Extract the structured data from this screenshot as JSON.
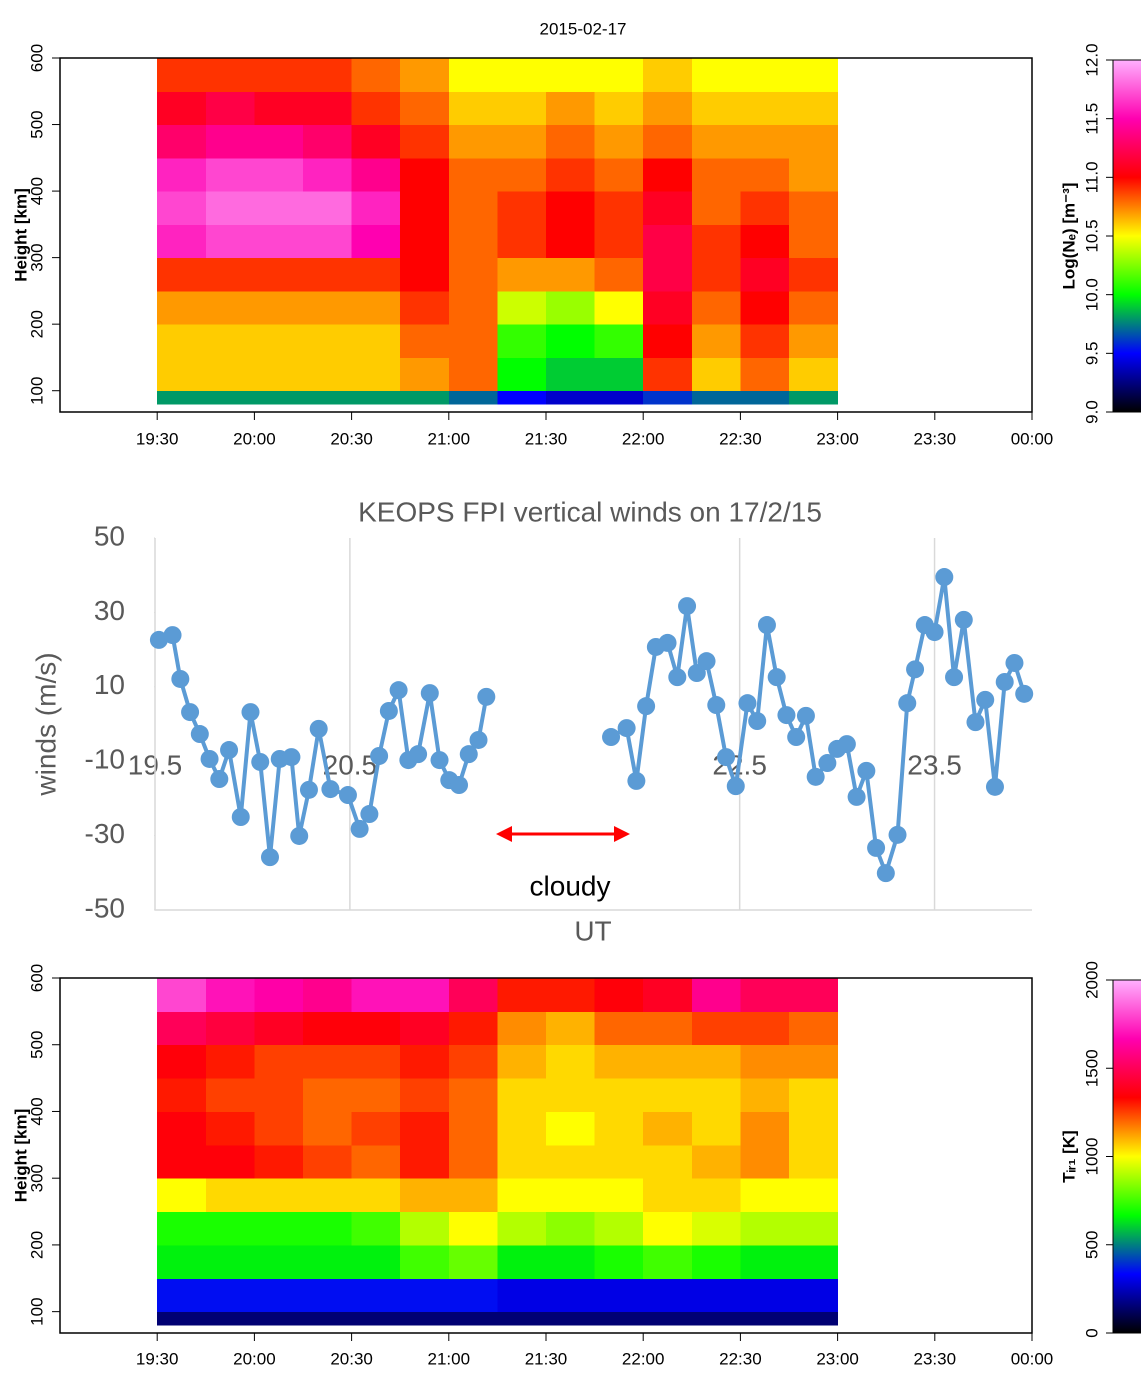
{
  "chart_data": [
    {
      "type": "heatmap",
      "title": "2015-02-17",
      "y_label": "Height [km]",
      "x_edges": [
        19.5,
        19.75,
        20.0,
        20.25,
        20.5,
        20.75,
        21.0,
        21.25,
        21.5,
        21.75,
        22.0,
        22.25,
        22.5,
        22.75,
        23.0
      ],
      "y_edges": [
        80,
        100,
        150,
        200,
        250,
        300,
        350,
        400,
        450,
        500,
        550,
        600
      ],
      "values": [
        [
          9.8,
          9.8,
          9.8,
          9.8,
          9.8,
          9.8,
          9.7,
          9.5,
          9.4,
          9.4,
          9.6,
          9.7,
          9.7,
          9.8
        ],
        [
          10.6,
          10.6,
          10.6,
          10.6,
          10.6,
          10.7,
          10.8,
          10.0,
          9.9,
          9.9,
          10.9,
          10.6,
          10.8,
          10.6
        ],
        [
          10.6,
          10.6,
          10.6,
          10.6,
          10.6,
          10.8,
          10.8,
          10.1,
          10.0,
          10.1,
          11.0,
          10.7,
          10.9,
          10.7
        ],
        [
          10.7,
          10.7,
          10.7,
          10.7,
          10.7,
          10.9,
          10.8,
          10.4,
          10.3,
          10.5,
          11.1,
          10.8,
          11.0,
          10.8
        ],
        [
          10.9,
          10.9,
          10.9,
          10.9,
          10.9,
          11.0,
          10.8,
          10.7,
          10.7,
          10.8,
          11.2,
          10.9,
          11.1,
          10.9
        ],
        [
          11.6,
          11.7,
          11.7,
          11.7,
          11.5,
          11.0,
          10.8,
          10.9,
          11.0,
          10.9,
          11.2,
          10.9,
          11.0,
          10.8
        ],
        [
          11.7,
          11.8,
          11.8,
          11.8,
          11.6,
          11.0,
          10.8,
          10.9,
          11.0,
          10.9,
          11.1,
          10.8,
          10.9,
          10.8
        ],
        [
          11.6,
          11.7,
          11.7,
          11.6,
          11.4,
          11.0,
          10.8,
          10.8,
          10.9,
          10.8,
          11.0,
          10.8,
          10.8,
          10.7
        ],
        [
          11.3,
          11.4,
          11.4,
          11.3,
          11.1,
          10.9,
          10.7,
          10.7,
          10.8,
          10.7,
          10.8,
          10.7,
          10.7,
          10.7
        ],
        [
          11.1,
          11.2,
          11.1,
          11.1,
          10.9,
          10.8,
          10.6,
          10.6,
          10.7,
          10.6,
          10.7,
          10.6,
          10.6,
          10.6
        ],
        [
          10.9,
          10.9,
          10.9,
          10.9,
          10.8,
          10.7,
          10.5,
          10.5,
          10.5,
          10.5,
          10.6,
          10.5,
          10.5,
          10.5
        ]
      ],
      "xlim": [
        19.0,
        24.0
      ],
      "xticks": [
        {
          "value": 19.5,
          "label": "19:30"
        },
        {
          "value": 20.0,
          "label": "20:00"
        },
        {
          "value": 20.5,
          "label": "20:30"
        },
        {
          "value": 21.0,
          "label": "21:00"
        },
        {
          "value": 21.5,
          "label": "21:30"
        },
        {
          "value": 22.0,
          "label": "22:00"
        },
        {
          "value": 22.5,
          "label": "22:30"
        },
        {
          "value": 23.0,
          "label": "23:00"
        },
        {
          "value": 23.5,
          "label": "23:30"
        },
        {
          "value": 24.0,
          "label": "00:00"
        }
      ],
      "ylim": [
        68,
        600
      ],
      "yticks": [
        100,
        200,
        300,
        400,
        500,
        600
      ],
      "colorbar": {
        "label": "Log(Nₑ) [m⁻³]",
        "lim": [
          9,
          12
        ],
        "ticks": [
          {
            "value": 9,
            "label": "9.0"
          },
          9.5,
          {
            "value": 10,
            "label": "10.0"
          },
          10.5,
          {
            "value": 11,
            "label": "11.0"
          },
          11.5,
          {
            "value": 12,
            "label": "12.0"
          }
        ],
        "colormap": [
          "#000000",
          "#0000ff",
          "#00ff00",
          "#ffff00",
          "#ff0000",
          "#ff00b0",
          "#ffb0ff"
        ]
      }
    },
    {
      "type": "line",
      "title": "KEOPS FPI vertical winds on 17/2/15",
      "y_label": "winds (m/s)",
      "x_label": "UT",
      "annotation": "cloudy",
      "color": "#5b9bd5",
      "grid": "x",
      "x": [
        19.52,
        19.59,
        19.63,
        19.68,
        19.73,
        19.78,
        19.83,
        19.88,
        19.94,
        19.99,
        20.04,
        20.09,
        20.14,
        20.2,
        20.24,
        20.29,
        20.34,
        20.4,
        20.49,
        20.55,
        20.6,
        20.65,
        20.7,
        20.75,
        20.8,
        20.85,
        20.91,
        20.96,
        21.01,
        21.06,
        21.11,
        21.16,
        21.2,
        21.5,
        21.84,
        21.92,
        21.97,
        22.02,
        22.07,
        22.13,
        22.18,
        22.23,
        22.28,
        22.33,
        22.38,
        22.43,
        22.48,
        22.54,
        22.59,
        22.64,
        22.69,
        22.74,
        22.79,
        22.84,
        22.89,
        22.95,
        23.0,
        23.05,
        23.1,
        23.15,
        23.2,
        23.25,
        23.31,
        23.36,
        23.4,
        23.45,
        23.5,
        23.55,
        23.6,
        23.65,
        23.71,
        23.76,
        23.81,
        23.86,
        23.91,
        23.96
      ],
      "values": [
        22.6,
        23.9,
        12.1,
        3.2,
        -2.7,
        -9.4,
        -14.8,
        -7.0,
        -25.0,
        3.2,
        -10.2,
        -35.8,
        -9.4,
        -8.9,
        -30.1,
        -17.7,
        -1.3,
        -17.5,
        -19.1,
        -28.2,
        -24.2,
        -8.6,
        3.5,
        9.1,
        -9.7,
        -8.1,
        8.3,
        -9.7,
        -15.1,
        -16.4,
        -8.1,
        -4.3,
        7.3,
        null,
        -3.5,
        -1.1,
        -15.3,
        4.8,
        20.7,
        21.8,
        12.6,
        31.7,
        13.7,
        16.9,
        5.1,
        -8.9,
        -16.7,
        5.6,
        0.8,
        26.6,
        12.6,
        2.4,
        -3.5,
        2.2,
        -14.2,
        -10.5,
        -6.7,
        -5.4,
        -19.6,
        -12.6,
        -33.3,
        -40.1,
        -29.8,
        5.6,
        14.7,
        26.6,
        24.7,
        39.5,
        12.6,
        28.0,
        0.5,
        6.5,
        -16.9,
        11.3,
        16.4,
        8.1
      ],
      "xlim": [
        19.5,
        24.0
      ],
      "xticks": [
        19.5,
        20.5,
        22.5,
        23.5
      ],
      "ylim": [
        -50,
        50
      ],
      "yticks": [
        50,
        30,
        10,
        -10,
        -30,
        -50
      ]
    },
    {
      "type": "heatmap",
      "y_label": "Height [km]",
      "x_edges": [
        19.5,
        19.75,
        20.0,
        20.25,
        20.5,
        20.75,
        21.0,
        21.25,
        21.5,
        21.75,
        22.0,
        22.25,
        22.5,
        22.75,
        23.0
      ],
      "y_edges": [
        80,
        100,
        150,
        200,
        250,
        300,
        350,
        400,
        450,
        500,
        550,
        600
      ],
      "values": [
        [
          150,
          150,
          150,
          150,
          150,
          150,
          150,
          150,
          150,
          150,
          150,
          150,
          150,
          150
        ],
        [
          350,
          350,
          350,
          350,
          350,
          350,
          350,
          300,
          300,
          300,
          300,
          300,
          300,
          300
        ],
        [
          650,
          650,
          650,
          650,
          650,
          750,
          800,
          650,
          650,
          700,
          750,
          700,
          650,
          650
        ],
        [
          700,
          700,
          700,
          700,
          750,
          900,
          1000,
          900,
          850,
          900,
          1000,
          950,
          900,
          900
        ],
        [
          1000,
          1050,
          1050,
          1050,
          1050,
          1100,
          1100,
          1000,
          1000,
          1000,
          1050,
          1050,
          1000,
          1000
        ],
        [
          1350,
          1350,
          1300,
          1250,
          1200,
          1300,
          1200,
          1050,
          1050,
          1050,
          1050,
          1100,
          1150,
          1050
        ],
        [
          1350,
          1300,
          1250,
          1200,
          1250,
          1300,
          1200,
          1050,
          1000,
          1050,
          1100,
          1050,
          1150,
          1050
        ],
        [
          1300,
          1250,
          1250,
          1200,
          1200,
          1250,
          1200,
          1050,
          1050,
          1050,
          1050,
          1050,
          1100,
          1050
        ],
        [
          1350,
          1300,
          1250,
          1250,
          1250,
          1300,
          1250,
          1100,
          1050,
          1100,
          1100,
          1100,
          1150,
          1150
        ],
        [
          1500,
          1450,
          1400,
          1350,
          1350,
          1400,
          1300,
          1150,
          1100,
          1200,
          1200,
          1250,
          1250,
          1200
        ],
        [
          1800,
          1700,
          1650,
          1600,
          1700,
          1700,
          1500,
          1300,
          1300,
          1350,
          1400,
          1600,
          1500,
          1500
        ]
      ],
      "xlim": [
        19.0,
        24.0
      ],
      "xticks": [
        {
          "value": 19.5,
          "label": "19:30"
        },
        {
          "value": 20.0,
          "label": "20:00"
        },
        {
          "value": 20.5,
          "label": "20:30"
        },
        {
          "value": 21.0,
          "label": "21:00"
        },
        {
          "value": 21.5,
          "label": "21:30"
        },
        {
          "value": 22.0,
          "label": "22:00"
        },
        {
          "value": 22.5,
          "label": "22:30"
        },
        {
          "value": 23.0,
          "label": "23:00"
        },
        {
          "value": 23.5,
          "label": "23:30"
        },
        {
          "value": 24.0,
          "label": "00:00"
        }
      ],
      "ylim": [
        68,
        600
      ],
      "yticks": [
        100,
        200,
        300,
        400,
        500,
        600
      ],
      "colorbar": {
        "label": "Tᵢᵣ₁ [K]",
        "lim": [
          0,
          2000
        ],
        "ticks": [
          0,
          500,
          1000,
          1500,
          2000
        ],
        "colormap": [
          "#000000",
          "#0000ff",
          "#00ff00",
          "#ffff00",
          "#ff0000",
          "#ff00b0",
          "#ffb0ff"
        ]
      }
    }
  ]
}
